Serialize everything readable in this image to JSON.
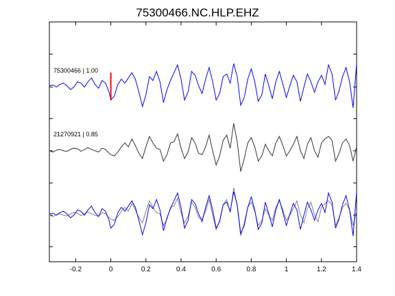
{
  "chart_data": {
    "type": "line",
    "title": "75300466.NC.HLP.EHZ",
    "xlabel": "",
    "ylabel": "",
    "xlim": [
      -0.35,
      1.4
    ],
    "x_ticks": [
      -0.2,
      0,
      0.2,
      0.4,
      0.6,
      0.8,
      1,
      1.2,
      1.4
    ],
    "x_tick_labels": [
      "-0.2",
      "0",
      "0.2",
      "0.4",
      "0.6",
      "0.8",
      "1",
      "1.2",
      "1.4"
    ],
    "grid": false,
    "pick_time": 0,
    "colors": {
      "template": "#0000ff",
      "match": "#333333",
      "overlay_match": "#808080",
      "pick": "#ff0000",
      "axes": "#000000"
    },
    "traces": [
      {
        "label": "75300466 | 1.00",
        "color": "#0000ff",
        "x": [
          -0.35,
          -0.33,
          -0.31,
          -0.29,
          -0.27,
          -0.25,
          -0.23,
          -0.21,
          -0.19,
          -0.17,
          -0.15,
          -0.13,
          -0.11,
          -0.09,
          -0.07,
          -0.05,
          -0.03,
          -0.01,
          0.0,
          0.02,
          0.04,
          0.06,
          0.08,
          0.1,
          0.12,
          0.14,
          0.16,
          0.18,
          0.2,
          0.22,
          0.24,
          0.26,
          0.28,
          0.3,
          0.32,
          0.34,
          0.36,
          0.38,
          0.4,
          0.42,
          0.44,
          0.46,
          0.48,
          0.5,
          0.52,
          0.54,
          0.56,
          0.58,
          0.6,
          0.62,
          0.64,
          0.66,
          0.68,
          0.7,
          0.72,
          0.74,
          0.76,
          0.78,
          0.8,
          0.82,
          0.84,
          0.86,
          0.88,
          0.9,
          0.92,
          0.94,
          0.96,
          0.98,
          1.0,
          1.02,
          1.04,
          1.06,
          1.08,
          1.1,
          1.12,
          1.14,
          1.16,
          1.18,
          1.2,
          1.22,
          1.24,
          1.26,
          1.28,
          1.3,
          1.32,
          1.34,
          1.36,
          1.38,
          1.4
        ],
        "y": [
          0.05,
          0.08,
          0.0,
          0.1,
          0.15,
          0.05,
          -0.1,
          0.0,
          0.2,
          0.15,
          0.0,
          0.2,
          0.35,
          0.1,
          -0.05,
          0.25,
          0.15,
          -0.2,
          -0.5,
          -0.35,
          0.1,
          0.3,
          0.15,
          0.35,
          0.55,
          0.3,
          -0.2,
          -0.75,
          -0.3,
          0.4,
          0.25,
          0.6,
          0.2,
          -0.6,
          -0.1,
          0.25,
          0.55,
          0.85,
          0.3,
          -0.5,
          -0.2,
          0.6,
          0.45,
          0.05,
          -0.25,
          0.3,
          0.75,
          0.2,
          -0.5,
          -0.25,
          0.4,
          0.5,
          0.15,
          0.9,
          0.4,
          -0.7,
          -0.4,
          0.3,
          0.7,
          0.2,
          -0.55,
          -0.3,
          0.5,
          0.05,
          -0.45,
          0.2,
          0.6,
          0.1,
          -0.4,
          0.05,
          0.45,
          0.2,
          -0.55,
          0.0,
          0.5,
          0.2,
          -0.2,
          0.2,
          0.45,
          0.1,
          0.85,
          0.5,
          -0.5,
          -0.15,
          0.4,
          0.75,
          0.2,
          -0.8,
          0.9
        ]
      },
      {
        "label": "21270921 | 0.85",
        "color": "#333333",
        "x": [
          -0.35,
          -0.33,
          -0.31,
          -0.29,
          -0.27,
          -0.25,
          -0.23,
          -0.21,
          -0.19,
          -0.17,
          -0.15,
          -0.13,
          -0.11,
          -0.09,
          -0.07,
          -0.05,
          -0.03,
          -0.01,
          0.0,
          0.02,
          0.04,
          0.06,
          0.08,
          0.1,
          0.12,
          0.14,
          0.16,
          0.18,
          0.2,
          0.22,
          0.24,
          0.26,
          0.28,
          0.3,
          0.32,
          0.34,
          0.36,
          0.38,
          0.4,
          0.42,
          0.44,
          0.46,
          0.48,
          0.5,
          0.52,
          0.54,
          0.56,
          0.58,
          0.6,
          0.62,
          0.64,
          0.66,
          0.68,
          0.7,
          0.72,
          0.74,
          0.76,
          0.78,
          0.8,
          0.82,
          0.84,
          0.86,
          0.88,
          0.9,
          0.92,
          0.94,
          0.96,
          0.98,
          1.0,
          1.02,
          1.04,
          1.06,
          1.08,
          1.1,
          1.12,
          1.14,
          1.16,
          1.18,
          1.2,
          1.22,
          1.24,
          1.26,
          1.28,
          1.3,
          1.32,
          1.34,
          1.36,
          1.38,
          1.4
        ],
        "y": [
          0.0,
          -0.05,
          0.02,
          0.05,
          0.0,
          -0.03,
          0.05,
          0.1,
          0.08,
          -0.02,
          0.05,
          0.12,
          0.05,
          0.0,
          -0.05,
          0.1,
          0.05,
          -0.1,
          -0.15,
          -0.2,
          -0.05,
          0.15,
          0.3,
          0.15,
          0.45,
          0.2,
          -0.1,
          -0.3,
          0.15,
          0.55,
          0.3,
          0.1,
          0.05,
          -0.4,
          -0.15,
          0.3,
          0.35,
          0.65,
          0.1,
          -0.3,
          -0.05,
          0.5,
          0.3,
          -0.1,
          -0.15,
          0.15,
          0.6,
          0.0,
          -0.55,
          -0.2,
          0.4,
          0.6,
          0.1,
          1.05,
          0.35,
          -0.8,
          -0.3,
          0.3,
          0.5,
          0.15,
          -0.4,
          -0.2,
          0.25,
          0.0,
          -0.2,
          0.3,
          0.55,
          0.2,
          -0.2,
          0.0,
          0.25,
          0.55,
          0.0,
          -0.3,
          0.25,
          0.5,
          0.0,
          -0.25,
          0.3,
          0.45,
          0.55,
          0.4,
          -0.4,
          -0.1,
          0.3,
          0.45,
          0.2,
          -0.4,
          0.15
        ]
      },
      {
        "label": "",
        "role": "overlay",
        "note": "superposition of both traces"
      }
    ]
  }
}
